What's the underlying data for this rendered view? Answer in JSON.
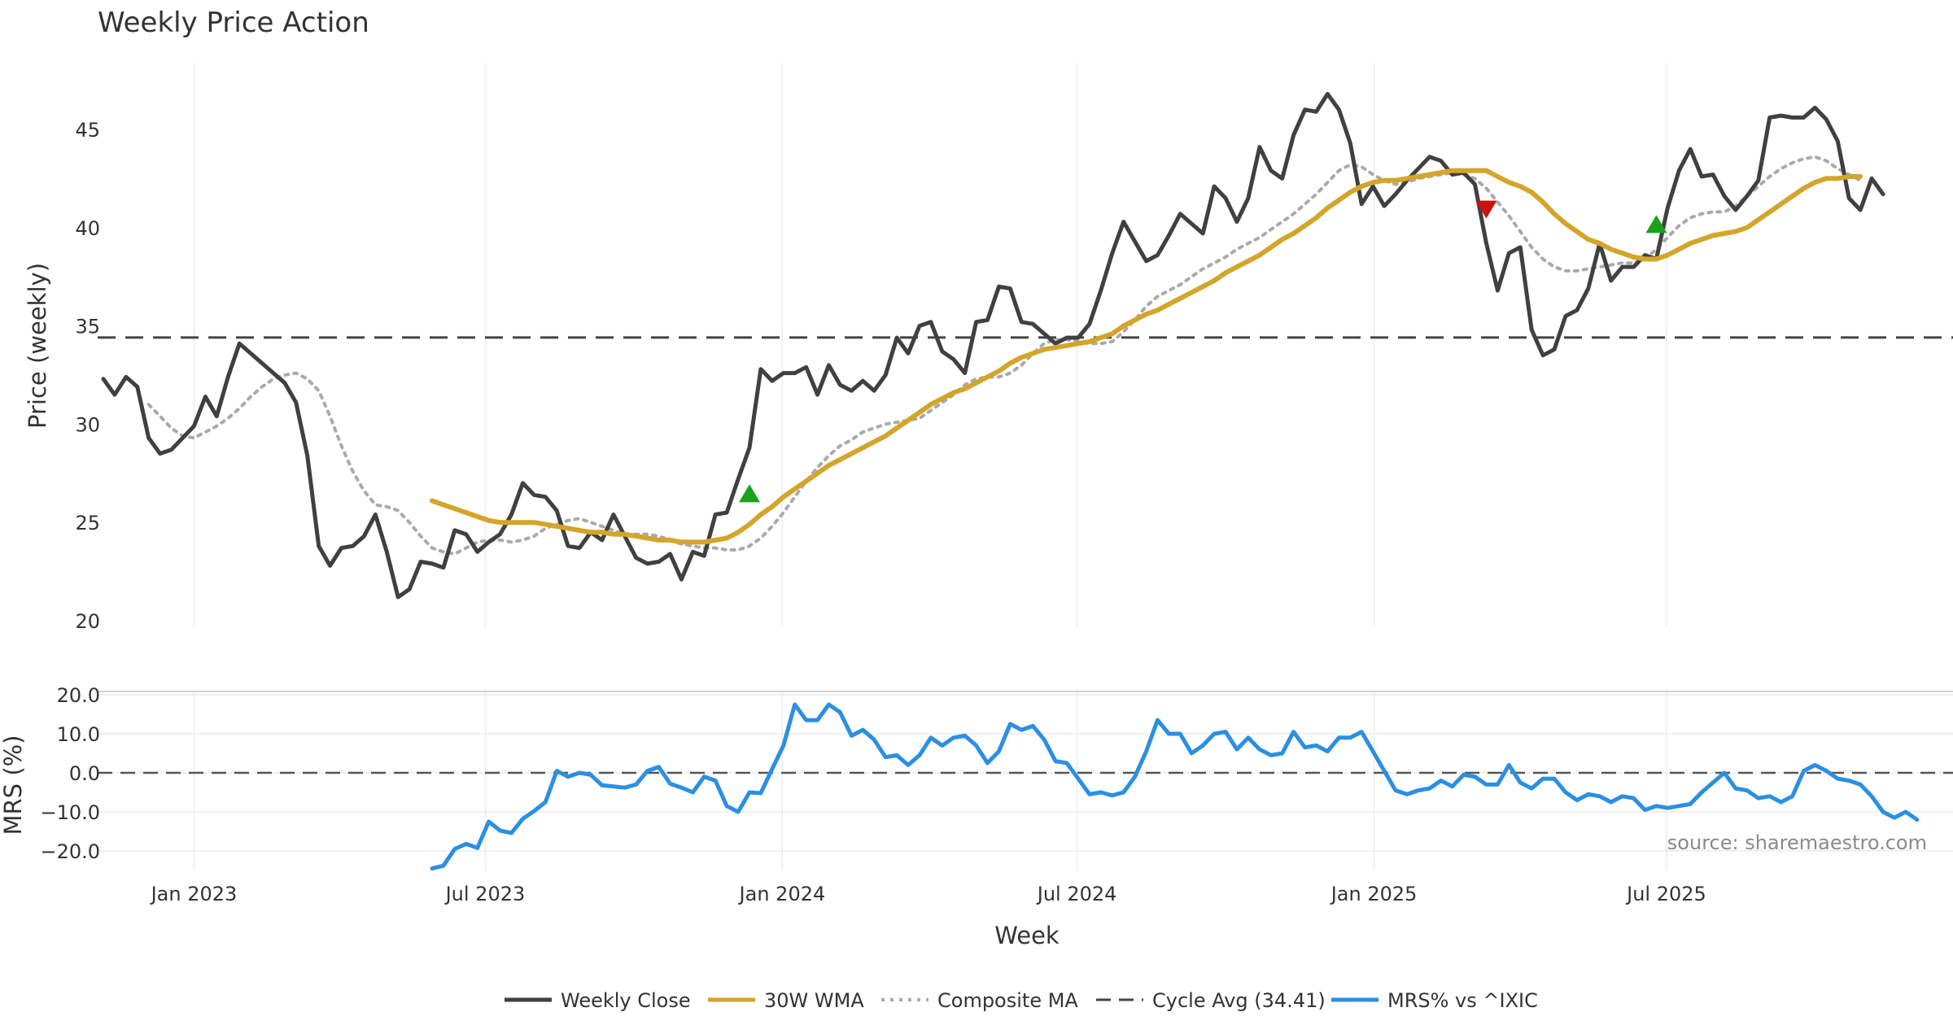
{
  "chart_data": [
    {
      "type": "line",
      "title": "Weekly Price Action",
      "xlabel": "Week",
      "ylabel": "Price (weekly)",
      "ylim": [
        20,
        48
      ],
      "yticks": [
        20,
        25,
        30,
        35,
        40,
        45
      ],
      "x_range_weeks": [
        0,
        157
      ],
      "x_ticks": [
        {
          "label": "Jan 2023",
          "week": 8
        },
        {
          "label": "Jul 2023",
          "week": 33.7
        },
        {
          "label": "Jan 2024",
          "week": 59.9
        },
        {
          "label": "Jul 2024",
          "week": 85.9
        },
        {
          "label": "Jan 2025",
          "week": 112.1
        },
        {
          "label": "Jul 2025",
          "week": 137.9
        }
      ],
      "grid": true,
      "cycle_avg": 34.41,
      "series": [
        {
          "name": "Weekly Close",
          "color": "#404040",
          "x_start": 0,
          "values": [
            32.3,
            31.5,
            32.4,
            31.9,
            29.3,
            28.5,
            28.7,
            29.3,
            29.9,
            31.4,
            30.4,
            32.4,
            34.1,
            33.6,
            33.1,
            32.6,
            32.1,
            31.1,
            28.4,
            23.8,
            22.8,
            23.7,
            23.8,
            24.3,
            25.4,
            23.5,
            21.2,
            21.6,
            23.0,
            22.9,
            22.7,
            24.6,
            24.4,
            23.5,
            24.0,
            24.4,
            25.4,
            27.0,
            26.4,
            26.3,
            25.6,
            23.8,
            23.7,
            24.5,
            24.1,
            25.4,
            24.3,
            23.2,
            22.9,
            23.0,
            23.4,
            22.1,
            23.5,
            23.3,
            25.4,
            25.5,
            27.2,
            28.8,
            32.8,
            32.2,
            32.6,
            32.6,
            32.9,
            31.5,
            33.0,
            32.0,
            31.7,
            32.2,
            31.7,
            32.5,
            34.4,
            33.6,
            35.0,
            35.2,
            33.7,
            33.3,
            32.6,
            35.2,
            35.3,
            37.0,
            36.9,
            35.2,
            35.1,
            34.6,
            34.1,
            34.4,
            34.4,
            35.1,
            36.8,
            38.7,
            40.3,
            39.3,
            38.3,
            38.6,
            39.6,
            40.7,
            40.2,
            39.7,
            42.1,
            41.5,
            40.3,
            41.5,
            44.1,
            42.9,
            42.5,
            44.7,
            46.0,
            45.9,
            46.8,
            46.0,
            44.3,
            41.2,
            42.1,
            41.1,
            41.7,
            42.4,
            43.0,
            43.6,
            43.4,
            42.7,
            42.8,
            42.2,
            39.2,
            36.8,
            38.7,
            39.0,
            34.8,
            33.5,
            33.8,
            35.5,
            35.8,
            36.9,
            39.2,
            37.3,
            38.0,
            38.0,
            38.6,
            38.4,
            41.0,
            42.9,
            44.0,
            42.6,
            42.7,
            41.6,
            40.9,
            41.6,
            42.4,
            45.6,
            45.7,
            45.6,
            45.6,
            46.1,
            45.5,
            44.4,
            41.5,
            40.9,
            42.5,
            41.7
          ]
        },
        {
          "name": "30W WMA",
          "color": "#d4a52b",
          "x_start": 29,
          "values": [
            26.1,
            25.9,
            25.7,
            25.5,
            25.3,
            25.1,
            25.0,
            25.0,
            25.0,
            25.0,
            24.9,
            24.8,
            24.7,
            24.6,
            24.5,
            24.5,
            24.4,
            24.4,
            24.3,
            24.2,
            24.1,
            24.1,
            24.0,
            24.0,
            24.0,
            24.1,
            24.2,
            24.5,
            24.9,
            25.4,
            25.8,
            26.3,
            26.7,
            27.1,
            27.5,
            27.9,
            28.2,
            28.5,
            28.8,
            29.1,
            29.4,
            29.8,
            30.2,
            30.6,
            31.0,
            31.3,
            31.6,
            31.8,
            32.1,
            32.4,
            32.7,
            33.1,
            33.4,
            33.6,
            33.8,
            33.9,
            34.0,
            34.1,
            34.2,
            34.4,
            34.6,
            35.0,
            35.3,
            35.6,
            35.8,
            36.1,
            36.4,
            36.7,
            37.0,
            37.3,
            37.7,
            38.0,
            38.3,
            38.6,
            39.0,
            39.4,
            39.7,
            40.1,
            40.5,
            41.0,
            41.4,
            41.8,
            42.1,
            42.3,
            42.4,
            42.4,
            42.5,
            42.6,
            42.7,
            42.8,
            42.9,
            42.9,
            42.9,
            42.9,
            42.6,
            42.3,
            42.1,
            41.8,
            41.3,
            40.7,
            40.2,
            39.8,
            39.4,
            39.2,
            38.9,
            38.7,
            38.5,
            38.4,
            38.4,
            38.6,
            38.9,
            39.2,
            39.4,
            39.6,
            39.7,
            39.8,
            40.0,
            40.4,
            40.8,
            41.2,
            41.6,
            42.0,
            42.3,
            42.5,
            42.5,
            42.6,
            42.6
          ]
        },
        {
          "name": "Composite MA",
          "color": "#aaaaaa",
          "x_start": 4,
          "values": [
            31.0,
            30.4,
            29.8,
            29.4,
            29.3,
            29.6,
            29.9,
            30.3,
            30.8,
            31.4,
            31.9,
            32.3,
            32.5,
            32.6,
            32.3,
            31.7,
            30.4,
            28.9,
            27.6,
            26.6,
            25.9,
            25.8,
            25.6,
            25.0,
            24.3,
            23.7,
            23.5,
            23.4,
            23.7,
            24.0,
            24.1,
            24.1,
            24.0,
            24.1,
            24.3,
            24.7,
            24.9,
            25.1,
            25.2,
            25.0,
            24.8,
            24.6,
            24.4,
            24.4,
            24.4,
            24.3,
            24.1,
            23.9,
            23.8,
            23.7,
            23.7,
            23.6,
            23.6,
            23.8,
            24.2,
            24.8,
            25.5,
            26.3,
            27.1,
            27.8,
            28.4,
            28.9,
            29.2,
            29.6,
            29.8,
            30.0,
            30.1,
            30.2,
            30.3,
            30.7,
            31.1,
            31.5,
            32.0,
            32.3,
            32.4,
            32.4,
            32.6,
            33.0,
            33.6,
            34.1,
            34.3,
            34.3,
            34.2,
            34.1,
            34.1,
            34.2,
            34.7,
            35.3,
            36.0,
            36.5,
            36.8,
            37.1,
            37.5,
            37.9,
            38.2,
            38.5,
            38.9,
            39.2,
            39.5,
            39.9,
            40.3,
            40.7,
            41.2,
            41.7,
            42.3,
            42.9,
            43.2,
            43.1,
            42.7,
            42.4,
            42.2,
            42.3,
            42.5,
            42.6,
            42.7,
            42.8,
            42.7,
            42.5,
            42.0,
            41.3,
            40.6,
            39.8,
            39.0,
            38.4,
            38.0,
            37.8,
            37.8,
            37.9,
            38.0,
            38.1,
            38.2,
            38.2,
            38.4,
            38.9,
            39.5,
            40.1,
            40.5,
            40.7,
            40.8,
            40.8,
            41.1,
            41.6,
            42.1,
            42.6,
            43.0,
            43.3,
            43.5,
            43.6,
            43.4,
            43.0,
            42.7,
            42.4
          ]
        }
      ],
      "markers": [
        {
          "type": "buy",
          "symbol": "up-triangle",
          "color": "#1aa31a",
          "week": 57,
          "value": 26.4
        },
        {
          "type": "sell",
          "symbol": "down-triangle",
          "color": "#cc1111",
          "week": 122,
          "value": 41.0
        },
        {
          "type": "buy",
          "symbol": "up-triangle",
          "color": "#1aa31a",
          "week": 137,
          "value": 40.1
        }
      ]
    },
    {
      "type": "line",
      "ylabel": "MRS (%)",
      "ylim": [
        -25,
        21
      ],
      "yticks": [
        20.0,
        10.0,
        0.0,
        -10.0,
        -20.0
      ],
      "ytick_labels": [
        "20.0",
        "10.0",
        "0.0",
        "−10.0",
        "−20.0"
      ],
      "zero_line": 0,
      "series": [
        {
          "name": "MRS% vs ^IXIC",
          "color": "#2b8fe3",
          "x_start": 29,
          "values": [
            -24.5,
            -23.8,
            -19.5,
            -18.2,
            -19.2,
            -12.5,
            -14.8,
            -15.4,
            -11.8,
            -9.8,
            -7.5,
            0.5,
            -1.0,
            0.0,
            -0.5,
            -3.2,
            -3.5,
            -3.8,
            -3.0,
            0.5,
            1.5,
            -2.8,
            -3.8,
            -5.0,
            -1.0,
            -2.0,
            -8.5,
            -10.0,
            -5.0,
            -5.2,
            1.0,
            7.0,
            17.5,
            13.5,
            13.5,
            17.5,
            15.5,
            9.5,
            11.0,
            8.5,
            4.0,
            4.5,
            2.0,
            4.5,
            9.0,
            7.0,
            9.0,
            9.5,
            7.0,
            2.5,
            5.5,
            12.5,
            11.0,
            12.0,
            8.5,
            3.0,
            2.5,
            -1.5,
            -5.5,
            -5.0,
            -5.8,
            -5.0,
            -1.0,
            5.5,
            13.5,
            10.0,
            10.0,
            5.0,
            7.0,
            10.0,
            10.5,
            6.0,
            9.0,
            6.0,
            4.5,
            5.0,
            10.5,
            6.5,
            7.0,
            5.5,
            9.0,
            9.0,
            10.5,
            5.5,
            0.5,
            -4.5,
            -5.5,
            -4.5,
            -4.0,
            -2.0,
            -3.5,
            -0.5,
            -1.0,
            -3.0,
            -3.0,
            2.0,
            -2.5,
            -4.0,
            -1.5,
            -1.5,
            -5.0,
            -7.0,
            -5.5,
            -6.0,
            -7.5,
            -6.0,
            -6.5,
            -9.5,
            -8.5,
            -9.0,
            -8.5,
            -8.0,
            -5.0,
            -2.5,
            0.0,
            -4.0,
            -4.5,
            -6.5,
            -6.0,
            -7.5,
            -6.0,
            0.5,
            2.0,
            0.5,
            -1.5,
            -2.0,
            -3.0,
            -6.0,
            -10.0,
            -11.5,
            -10.0,
            -12.0
          ]
        }
      ]
    }
  ],
  "legend": {
    "items": [
      {
        "label": "Weekly Close",
        "style": "solid",
        "color": "#404040"
      },
      {
        "label": "30W WMA",
        "style": "solid",
        "color": "#d4a52b"
      },
      {
        "label": "Composite MA",
        "style": "dotted",
        "color": "#aaaaaa"
      },
      {
        "label": "Cycle Avg (34.41)",
        "style": "dashed",
        "color": "#444444"
      },
      {
        "label": "MRS% vs ^IXIC",
        "style": "solid",
        "color": "#2b8fe3"
      }
    ]
  },
  "source": "source: sharemaestro.com"
}
